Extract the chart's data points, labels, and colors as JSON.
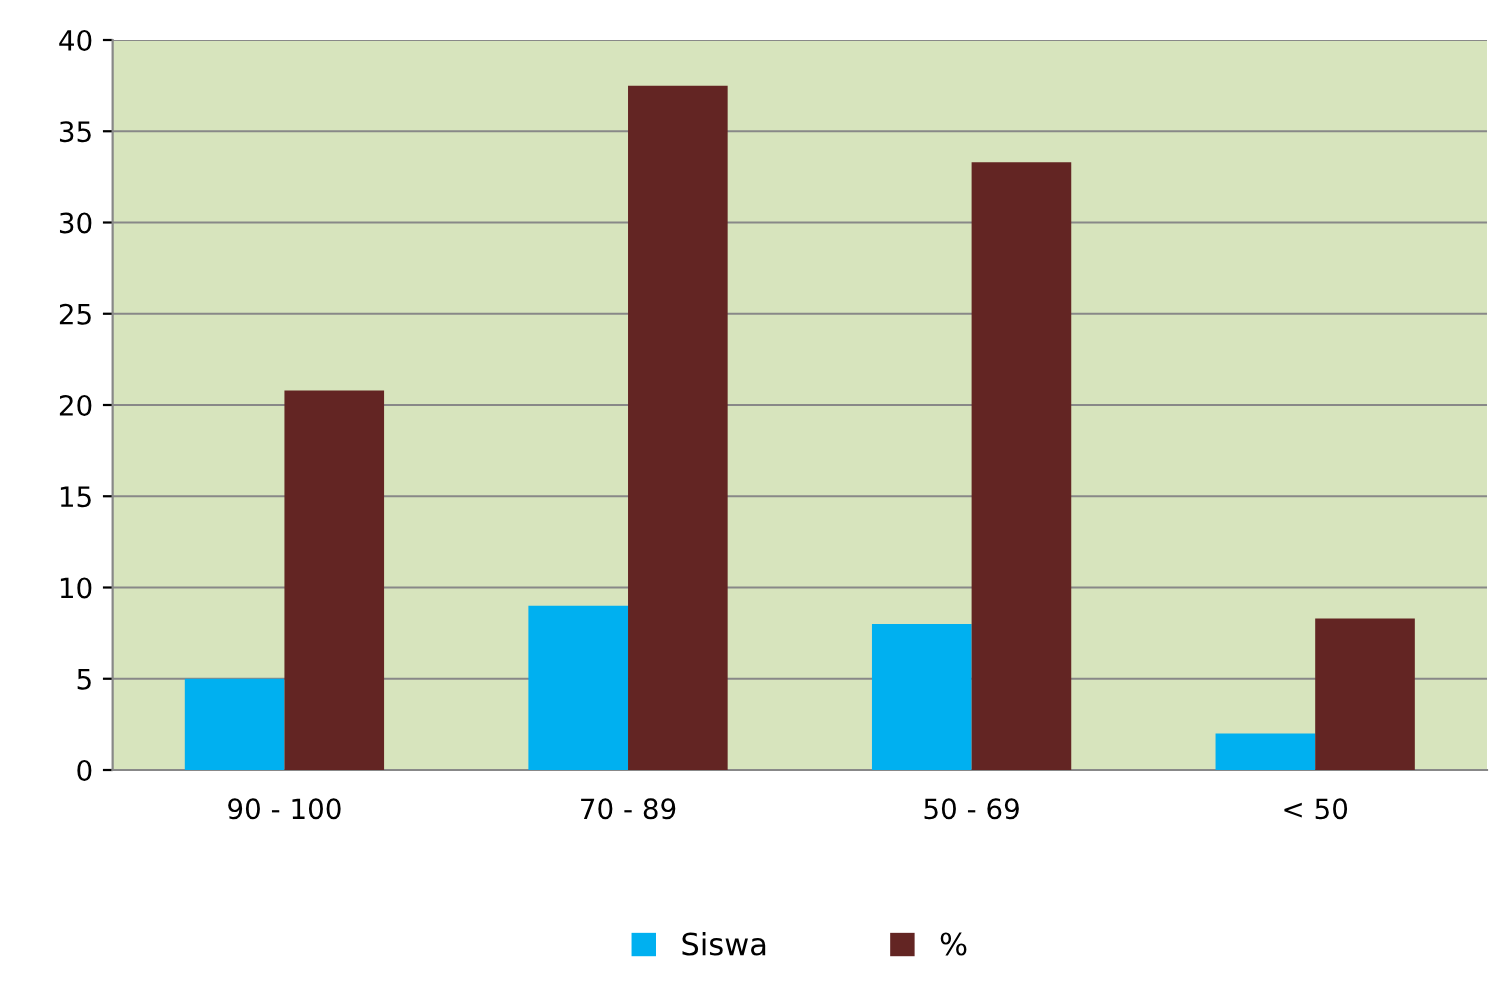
{
  "chart_data": {
    "type": "bar",
    "categories": [
      "90 - 100",
      "70 - 89",
      "50 - 69",
      "< 50"
    ],
    "series": [
      {
        "name": "Siswa",
        "color": "#00b0f0",
        "values": [
          5,
          9,
          8,
          2
        ]
      },
      {
        "name": "%",
        "color": "#632523",
        "values": [
          20.8,
          37.5,
          33.3,
          8.3
        ]
      }
    ],
    "ylim": [
      0,
      40
    ],
    "yticks": [
      0,
      5,
      10,
      15,
      20,
      25,
      30,
      35,
      40
    ],
    "grid": "y",
    "legend": "bottom"
  }
}
